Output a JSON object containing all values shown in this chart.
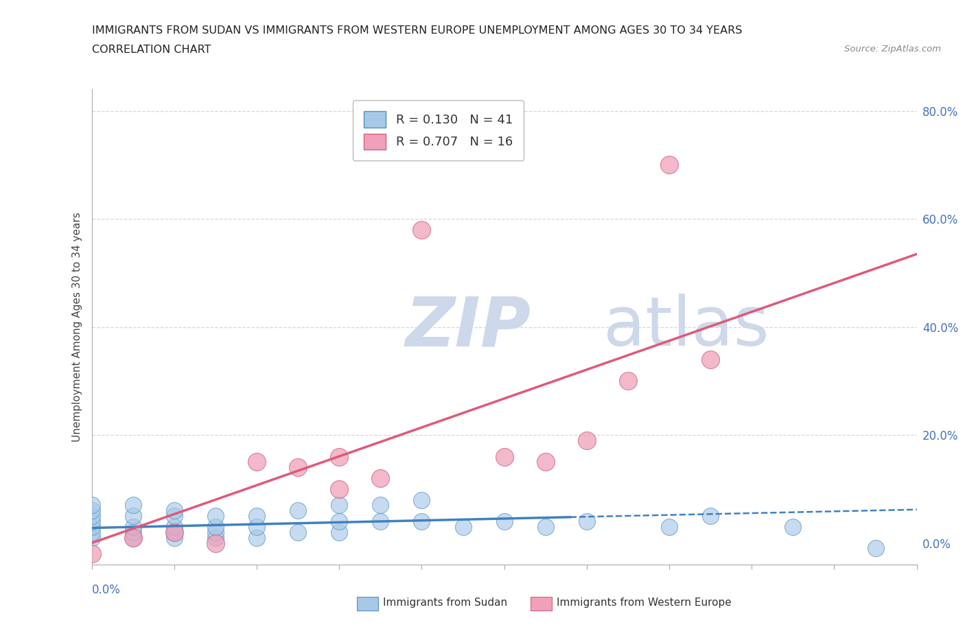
{
  "title_line1": "IMMIGRANTS FROM SUDAN VS IMMIGRANTS FROM WESTERN EUROPE UNEMPLOYMENT AMONG AGES 30 TO 34 YEARS",
  "title_line2": "CORRELATION CHART",
  "source_text": "Source: ZipAtlas.com",
  "ylabel": "Unemployment Among Ages 30 to 34 years",
  "ylabel_right_ticks": [
    "80.0%",
    "60.0%",
    "40.0%",
    "20.0%",
    "0.0%"
  ],
  "ylabel_right_values": [
    0.8,
    0.6,
    0.4,
    0.2,
    0.0
  ],
  "xlim": [
    0.0,
    0.1
  ],
  "ylim": [
    -0.04,
    0.84
  ],
  "legend_R1": "0.130",
  "legend_N1": "41",
  "legend_R2": "0.707",
  "legend_N2": "16",
  "sudan_color": "#a8c8e8",
  "sudan_edge": "#5090c0",
  "western_europe_color": "#f0a0b8",
  "western_europe_edge": "#d06080",
  "trendline_sudan_color": "#4080c0",
  "trendline_we_color": "#e05878",
  "grid_color": "#cccccc",
  "background_color": "#ffffff",
  "watermark_color": "#cdd8ea",
  "sudan_x": [
    0.0,
    0.0,
    0.0,
    0.0,
    0.0,
    0.0,
    0.0,
    0.005,
    0.005,
    0.005,
    0.005,
    0.005,
    0.01,
    0.01,
    0.01,
    0.01,
    0.01,
    0.015,
    0.015,
    0.015,
    0.015,
    0.02,
    0.02,
    0.02,
    0.025,
    0.025,
    0.03,
    0.03,
    0.03,
    0.035,
    0.035,
    0.04,
    0.04,
    0.045,
    0.05,
    0.055,
    0.06,
    0.07,
    0.075,
    0.085,
    0.095
  ],
  "sudan_y": [
    0.01,
    0.02,
    0.03,
    0.04,
    0.05,
    0.06,
    0.07,
    0.01,
    0.02,
    0.03,
    0.05,
    0.07,
    0.01,
    0.02,
    0.03,
    0.05,
    0.06,
    0.01,
    0.02,
    0.03,
    0.05,
    0.01,
    0.03,
    0.05,
    0.02,
    0.06,
    0.02,
    0.04,
    0.07,
    0.04,
    0.07,
    0.04,
    0.08,
    0.03,
    0.04,
    0.03,
    0.04,
    0.03,
    0.05,
    0.03,
    -0.01
  ],
  "western_europe_x": [
    0.0,
    0.005,
    0.01,
    0.015,
    0.02,
    0.025,
    0.03,
    0.03,
    0.035,
    0.04,
    0.05,
    0.055,
    0.06,
    0.065,
    0.07,
    0.075
  ],
  "western_europe_y": [
    -0.02,
    0.01,
    0.02,
    0.0,
    0.15,
    0.14,
    0.1,
    0.16,
    0.12,
    0.58,
    0.16,
    0.15,
    0.19,
    0.3,
    0.7,
    0.34
  ],
  "trendline_sudan_x1": 0.0,
  "trendline_sudan_y1": 0.028,
  "trendline_sudan_x2": 0.058,
  "trendline_sudan_y2": 0.048,
  "trendline_sudan_dash_x1": 0.058,
  "trendline_sudan_dash_y1": 0.048,
  "trendline_sudan_dash_x2": 0.1,
  "trendline_sudan_dash_y2": 0.062,
  "trendline_we_x1": 0.0,
  "trendline_we_y1": 0.0,
  "trendline_we_x2": 0.1,
  "trendline_we_y2": 0.535
}
